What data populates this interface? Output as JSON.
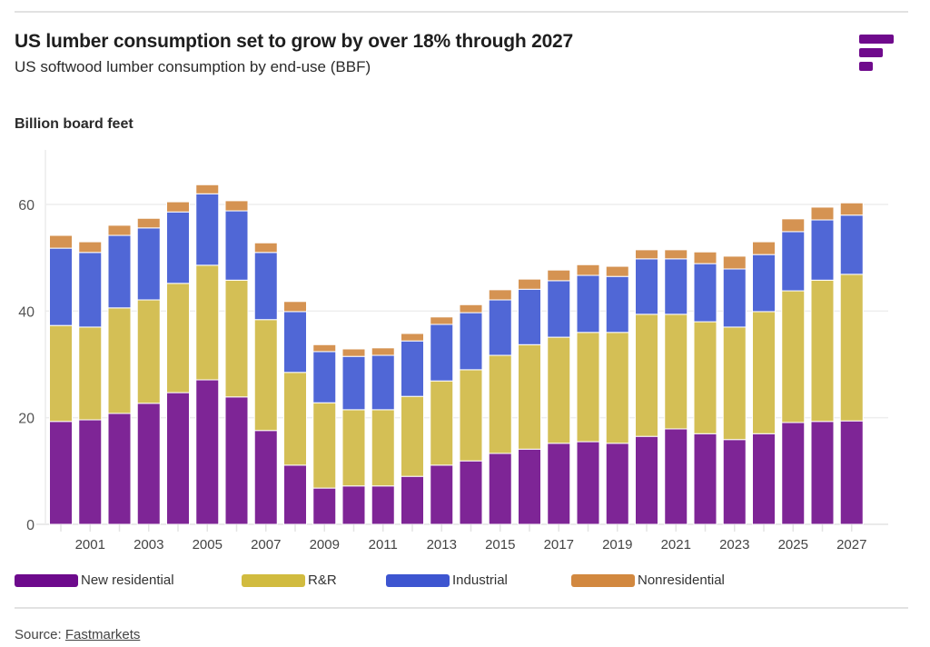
{
  "header": {
    "title": "US lumber consumption set to grow by over 18% through 2027",
    "subtitle": "US softwood lumber consumption by end-use (BBF)",
    "logo": "fastmarkets-logo-icon"
  },
  "footer": {
    "source_prefix": "Source: ",
    "source_link": "Fastmarkets"
  },
  "chart_data": {
    "type": "bar",
    "stacked": true,
    "title": "US lumber consumption set to grow by over 18% through 2027",
    "subtitle": "US softwood lumber consumption by end-use (BBF)",
    "xlabel": "",
    "ylabel": "Billion board feet",
    "ylim": [
      0,
      70
    ],
    "yticks": [
      0,
      20,
      40,
      60
    ],
    "grid": true,
    "legend_position": "bottom-left",
    "categories": [
      "2000",
      "2001",
      "2002",
      "2003",
      "2004",
      "2005",
      "2006",
      "2007",
      "2008",
      "2009",
      "2010",
      "2011",
      "2012",
      "2013",
      "2014",
      "2015",
      "2016",
      "2017",
      "2018",
      "2019",
      "2020",
      "2021",
      "2022",
      "2023",
      "2024",
      "2025",
      "2026",
      "2027"
    ],
    "xtick_labels": [
      "2001",
      "2003",
      "2005",
      "2007",
      "2009",
      "2011",
      "2013",
      "2015",
      "2017",
      "2019",
      "2021",
      "2023",
      "2025",
      "2027"
    ],
    "series": [
      {
        "name": "New residential",
        "color": "#7e2596",
        "legend_color": "#6d0a8c",
        "values": [
          19.3,
          19.6,
          20.8,
          22.7,
          24.7,
          27.1,
          23.9,
          17.6,
          11.1,
          6.8,
          7.2,
          7.2,
          9.0,
          11.1,
          11.9,
          13.3,
          14.1,
          15.2,
          15.5,
          15.2,
          16.5,
          17.9,
          17.0,
          15.9,
          17.0,
          19.1,
          19.3,
          19.4
        ]
      },
      {
        "name": "R&R",
        "color": "#d4bf55",
        "legend_color": "#d1bb3f",
        "values": [
          18.0,
          17.4,
          19.8,
          19.4,
          20.5,
          21.5,
          21.9,
          20.8,
          17.4,
          16.0,
          14.3,
          14.3,
          15.0,
          15.8,
          17.1,
          18.4,
          19.6,
          19.9,
          20.5,
          20.8,
          22.9,
          21.5,
          21.0,
          21.1,
          22.9,
          24.7,
          26.5,
          27.5
        ]
      },
      {
        "name": "Industrial",
        "color": "#5067d6",
        "legend_color": "#3d55d0",
        "values": [
          14.5,
          14.0,
          13.6,
          13.5,
          13.4,
          13.4,
          13.0,
          12.6,
          11.4,
          9.6,
          10.0,
          10.2,
          10.4,
          10.6,
          10.7,
          10.4,
          10.4,
          10.6,
          10.7,
          10.5,
          10.4,
          10.4,
          10.9,
          10.9,
          10.7,
          11.1,
          11.3,
          11.1
        ]
      },
      {
        "name": "Nonresidential",
        "color": "#d59352",
        "legend_color": "#d2883f",
        "values": [
          2.4,
          2.0,
          1.9,
          1.8,
          1.9,
          1.7,
          1.9,
          1.8,
          1.9,
          1.3,
          1.4,
          1.4,
          1.4,
          1.4,
          1.5,
          1.9,
          1.9,
          2.0,
          2.0,
          1.9,
          1.7,
          1.7,
          2.2,
          2.4,
          2.4,
          2.4,
          2.4,
          2.3
        ]
      }
    ]
  }
}
